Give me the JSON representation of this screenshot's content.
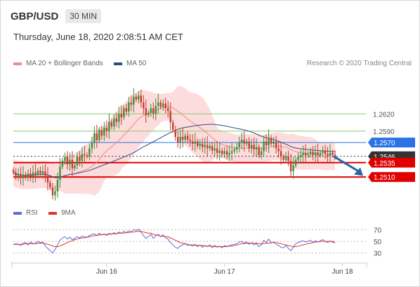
{
  "header": {
    "symbol": "GBP/USD",
    "timeframe": "30 MIN",
    "timestamp": "Thursday, June 18, 2020 2:08:51 AM CET"
  },
  "legend": {
    "ma_bb_label": "MA 20 + Bollinger Bands",
    "ma50_label": "MA 50",
    "credit": "Research © 2020 Trading Central",
    "rsi_label": "RSI",
    "rsi_ma_label": "9MA"
  },
  "colors": {
    "bull": "#3c8f3c",
    "bear": "#c93a2e",
    "bollinger": "#fbd0d0",
    "ma20": "#f08a8a",
    "ma50": "#2a4e85",
    "resistance": "#8cc76b",
    "pivot": "#2b72e6",
    "support": "#e00000",
    "last": "#333333",
    "arrow": "#2b63a8",
    "rsi": "#5b6fd6",
    "rsi_ma": "#e53131"
  },
  "chart_data": [
    {
      "type": "candlestick",
      "title": "GBP/USD",
      "ylim": [
        1.2465,
        1.2695
      ],
      "x_ticks": [
        {
          "index": 38,
          "label": "Jun 16"
        },
        {
          "index": 86,
          "label": "Jun 17"
        },
        {
          "index": 134,
          "label": "Jun 18"
        }
      ],
      "price_levels": [
        {
          "value": 1.262,
          "label": "1.2620",
          "role": "resistance"
        },
        {
          "value": 1.259,
          "label": "1.2590",
          "role": "resistance"
        },
        {
          "value": 1.257,
          "label": "1.2570",
          "role": "pivot"
        },
        {
          "value": 1.2546,
          "label": "1.2546",
          "role": "last"
        },
        {
          "value": 1.2535,
          "label": "1.2535",
          "role": "support"
        },
        {
          "value": 1.251,
          "label": "1.2510",
          "role": "support"
        }
      ],
      "forecast_arrow": {
        "from": 1.2546,
        "to": 1.2512
      },
      "closes": [
        1.2518,
        1.2512,
        1.2515,
        1.2508,
        1.2514,
        1.2509,
        1.2516,
        1.2511,
        1.2518,
        1.2514,
        1.2521,
        1.2516,
        1.252,
        1.2512,
        1.25,
        1.2492,
        1.2478,
        1.2485,
        1.2505,
        1.2528,
        1.2538,
        1.2545,
        1.2532,
        1.254,
        1.2525,
        1.253,
        1.2545,
        1.2538,
        1.255,
        1.2548,
        1.2546,
        1.256,
        1.257,
        1.2586,
        1.2574,
        1.2592,
        1.2582,
        1.2596,
        1.259,
        1.2606,
        1.2598,
        1.2612,
        1.2606,
        1.262,
        1.2614,
        1.263,
        1.2624,
        1.264,
        1.2636,
        1.265,
        1.2645,
        1.2652,
        1.264,
        1.263,
        1.2618,
        1.2622,
        1.263,
        1.262,
        1.2634,
        1.264,
        1.2632,
        1.2638,
        1.263,
        1.2625,
        1.2605,
        1.2592,
        1.258,
        1.257,
        1.258,
        1.2575,
        1.2582,
        1.2575,
        1.2572,
        1.2568,
        1.2572,
        1.2564,
        1.2568,
        1.2562,
        1.2566,
        1.256,
        1.2564,
        1.2556,
        1.256,
        1.2552,
        1.2556,
        1.255,
        1.2555,
        1.2549,
        1.2552,
        1.2555,
        1.2558,
        1.2562,
        1.257,
        1.2575,
        1.2568,
        1.2572,
        1.256,
        1.2566,
        1.2558,
        1.2562,
        1.2548,
        1.2555,
        1.2572,
        1.2565,
        1.2578,
        1.2568,
        1.2572,
        1.256,
        1.2555,
        1.2545,
        1.254,
        1.2546,
        1.2538,
        1.252,
        1.253,
        1.254,
        1.2545,
        1.2548,
        1.2552,
        1.2548,
        1.255,
        1.2554,
        1.2548,
        1.2553,
        1.2548,
        1.2552,
        1.2556,
        1.255,
        1.2547,
        1.2552,
        1.2549,
        1.2546
      ],
      "rsi": {
        "ylim": [
          20,
          80
        ],
        "ticks": [
          70,
          50,
          30
        ],
        "rsi_values": [
          44,
          46,
          45,
          43,
          47,
          48,
          44,
          49,
          46,
          47,
          50,
          48,
          49,
          42,
          38,
          34,
          30,
          36,
          44,
          52,
          56,
          58,
          54,
          57,
          53,
          55,
          58,
          56,
          59,
          58,
          57,
          60,
          62,
          63,
          60,
          64,
          61,
          63,
          60,
          64,
          62,
          65,
          63,
          66,
          64,
          67,
          65,
          68,
          66,
          70,
          69,
          71,
          66,
          60,
          55,
          58,
          62,
          55,
          60,
          62,
          58,
          61,
          56,
          54,
          48,
          44,
          40,
          38,
          42,
          44,
          46,
          43,
          44,
          42,
          45,
          41,
          44,
          40,
          43,
          41,
          44,
          39,
          43,
          40,
          42,
          39,
          43,
          41,
          43,
          44,
          45,
          46,
          49,
          50,
          47,
          49,
          45,
          48,
          44,
          46,
          41,
          44,
          52,
          48,
          54,
          47,
          49,
          45,
          43,
          40,
          39,
          43,
          38,
          34,
          40,
          46,
          48,
          50,
          51,
          49,
          50,
          52,
          48,
          51,
          49,
          51,
          53,
          50,
          48,
          51,
          49,
          47
        ],
        "ma_values": [
          45,
          45,
          45,
          45,
          45,
          46,
          46,
          46,
          46,
          46,
          47,
          47,
          47,
          46,
          45,
          44,
          42,
          41,
          41,
          42,
          44,
          46,
          48,
          50,
          51,
          53,
          54,
          55,
          56,
          56,
          57,
          58,
          59,
          60,
          60,
          61,
          61,
          62,
          62,
          62,
          63,
          63,
          63,
          64,
          64,
          64,
          65,
          65,
          66,
          66,
          67,
          67,
          67,
          66,
          65,
          64,
          64,
          62,
          61,
          60,
          59,
          59,
          58,
          58,
          56,
          54,
          52,
          50,
          48,
          47,
          46,
          45,
          44,
          44,
          43,
          43,
          43,
          43,
          42,
          42,
          42,
          42,
          41,
          41,
          41,
          41,
          41,
          41,
          42,
          42,
          43,
          44,
          45,
          46,
          46,
          47,
          47,
          47,
          47,
          47,
          46,
          46,
          46,
          47,
          47,
          48,
          48,
          48,
          47,
          46,
          45,
          44,
          43,
          42,
          41,
          41,
          42,
          43,
          44,
          45,
          46,
          47,
          48,
          49,
          49,
          50,
          50,
          50,
          50,
          50,
          50,
          49
        ]
      }
    }
  ]
}
